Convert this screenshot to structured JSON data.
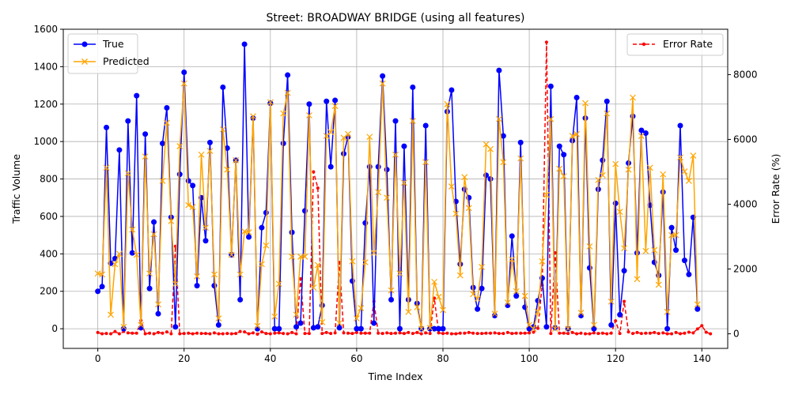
{
  "chart_data": {
    "type": "line",
    "title": "Street: BROADWAY BRIDGE (using all features)",
    "xlabel": "Time Index",
    "ylabel_left": "Traffic Volume",
    "ylabel_right": "Error Rate (%)",
    "xlim": [
      -8,
      146
    ],
    "ylim_left": [
      -105,
      1600
    ],
    "ylim_right": [
      -450,
      9400
    ],
    "x_ticks": [
      0,
      20,
      40,
      60,
      80,
      100,
      120,
      140
    ],
    "y_ticks_left": [
      0,
      200,
      400,
      600,
      800,
      1000,
      1200,
      1400,
      1600
    ],
    "y_ticks_right": [
      0,
      2000,
      4000,
      6000,
      8000
    ],
    "grid": true,
    "legend_left_position": "top-left",
    "legend_right_position": "top-right",
    "series": [
      {
        "name": "True",
        "axis": "left",
        "color": "#0000ff",
        "marker": "circle",
        "values": [
          200,
          225,
          1075,
          350,
          375,
          955,
          0,
          1110,
          405,
          1245,
          5,
          1040,
          215,
          570,
          80,
          990,
          1180,
          595,
          10,
          825,
          1370,
          790,
          765,
          230,
          700,
          470,
          995,
          230,
          20,
          1290,
          965,
          395,
          900,
          155,
          1520,
          490,
          1125,
          0,
          540,
          620,
          1205,
          0,
          0,
          990,
          1355,
          515,
          10,
          30,
          630,
          1200,
          5,
          10,
          125,
          1215,
          865,
          1220,
          5,
          935,
          1025,
          255,
          0,
          0,
          565,
          865,
          30,
          865,
          1350,
          850,
          155,
          1110,
          0,
          975,
          155,
          1290,
          135,
          0,
          1085,
          0,
          0,
          0,
          0,
          1160,
          1275,
          680,
          345,
          745,
          700,
          220,
          105,
          215,
          820,
          800,
          70,
          1380,
          1030,
          125,
          495,
          175,
          995,
          115,
          0,
          10,
          150,
          270,
          10,
          1295,
          5,
          975,
          930,
          0,
          1005,
          1235,
          70,
          1125,
          325,
          0,
          745,
          900,
          1215,
          20,
          670,
          75,
          310,
          885,
          1135,
          405,
          1060,
          1045,
          660,
          355,
          285,
          730,
          0,
          540,
          420,
          1085,
          365,
          290,
          595,
          105
        ]
      },
      {
        "name": "Predicted",
        "axis": "left",
        "color": "#ffa500",
        "marker": "x",
        "values": [
          295,
          290,
          860,
          75,
          345,
          400,
          10,
          830,
          530,
          395,
          20,
          920,
          295,
          505,
          130,
          790,
          1100,
          575,
          240,
          975,
          1310,
          660,
          650,
          280,
          930,
          540,
          950,
          290,
          55,
          1065,
          850,
          395,
          900,
          290,
          520,
          515,
          1135,
          15,
          345,
          445,
          1210,
          65,
          240,
          1150,
          1260,
          385,
          75,
          385,
          385,
          1140,
          220,
          340,
          35,
          1030,
          1050,
          1190,
          30,
          1020,
          1040,
          360,
          55,
          110,
          355,
          1025,
          405,
          730,
          1310,
          700,
          205,
          930,
          295,
          780,
          90,
          1110,
          115,
          0,
          890,
          5,
          250,
          170,
          100,
          1200,
          760,
          615,
          285,
          810,
          645,
          185,
          160,
          330,
          985,
          960,
          80,
          1120,
          890,
          140,
          370,
          200,
          910,
          175,
          20,
          0,
          90,
          360,
          715,
          1120,
          0,
          855,
          815,
          0,
          1030,
          1040,
          85,
          1205,
          440,
          20,
          795,
          820,
          1150,
          145,
          880,
          625,
          430,
          850,
          1235,
          265,
          1030,
          415,
          860,
          420,
          235,
          825,
          90,
          500,
          500,
          915,
          840,
          790,
          925,
          130
        ]
      },
      {
        "name": "Error Rate",
        "axis": "right",
        "color": "#ff0000",
        "marker": "dot",
        "linestyle": "dashed",
        "values": [
          40,
          0,
          10,
          0,
          70,
          0,
          70,
          30,
          20,
          20,
          410,
          0,
          20,
          0,
          40,
          20,
          60,
          0,
          2700,
          0,
          10,
          20,
          0,
          20,
          10,
          10,
          0,
          30,
          0,
          0,
          10,
          0,
          10,
          70,
          60,
          0,
          30,
          -10,
          60,
          10,
          0,
          20,
          30,
          10,
          0,
          40,
          0,
          1700,
          10,
          10,
          5000,
          4500,
          10,
          40,
          10,
          30,
          2200,
          30,
          20,
          10,
          40,
          20,
          20,
          20,
          1000,
          20,
          10,
          30,
          10,
          20,
          30,
          10,
          40,
          10,
          40,
          0,
          30,
          10,
          1100,
          30,
          10,
          20,
          0,
          0,
          20,
          20,
          40,
          20,
          10,
          10,
          20,
          20,
          30,
          10,
          10,
          40,
          10,
          20,
          20,
          20,
          30,
          50,
          170,
          1500,
          9000,
          10,
          2500,
          20,
          20,
          10,
          40,
          0,
          20,
          0,
          0,
          30,
          10,
          20,
          0,
          20,
          400,
          10,
          1000,
          60,
          10,
          40,
          10,
          20,
          20,
          40,
          10,
          30,
          0,
          0,
          40,
          5,
          20,
          50,
          30,
          150,
          250,
          50,
          0
        ]
      }
    ]
  }
}
